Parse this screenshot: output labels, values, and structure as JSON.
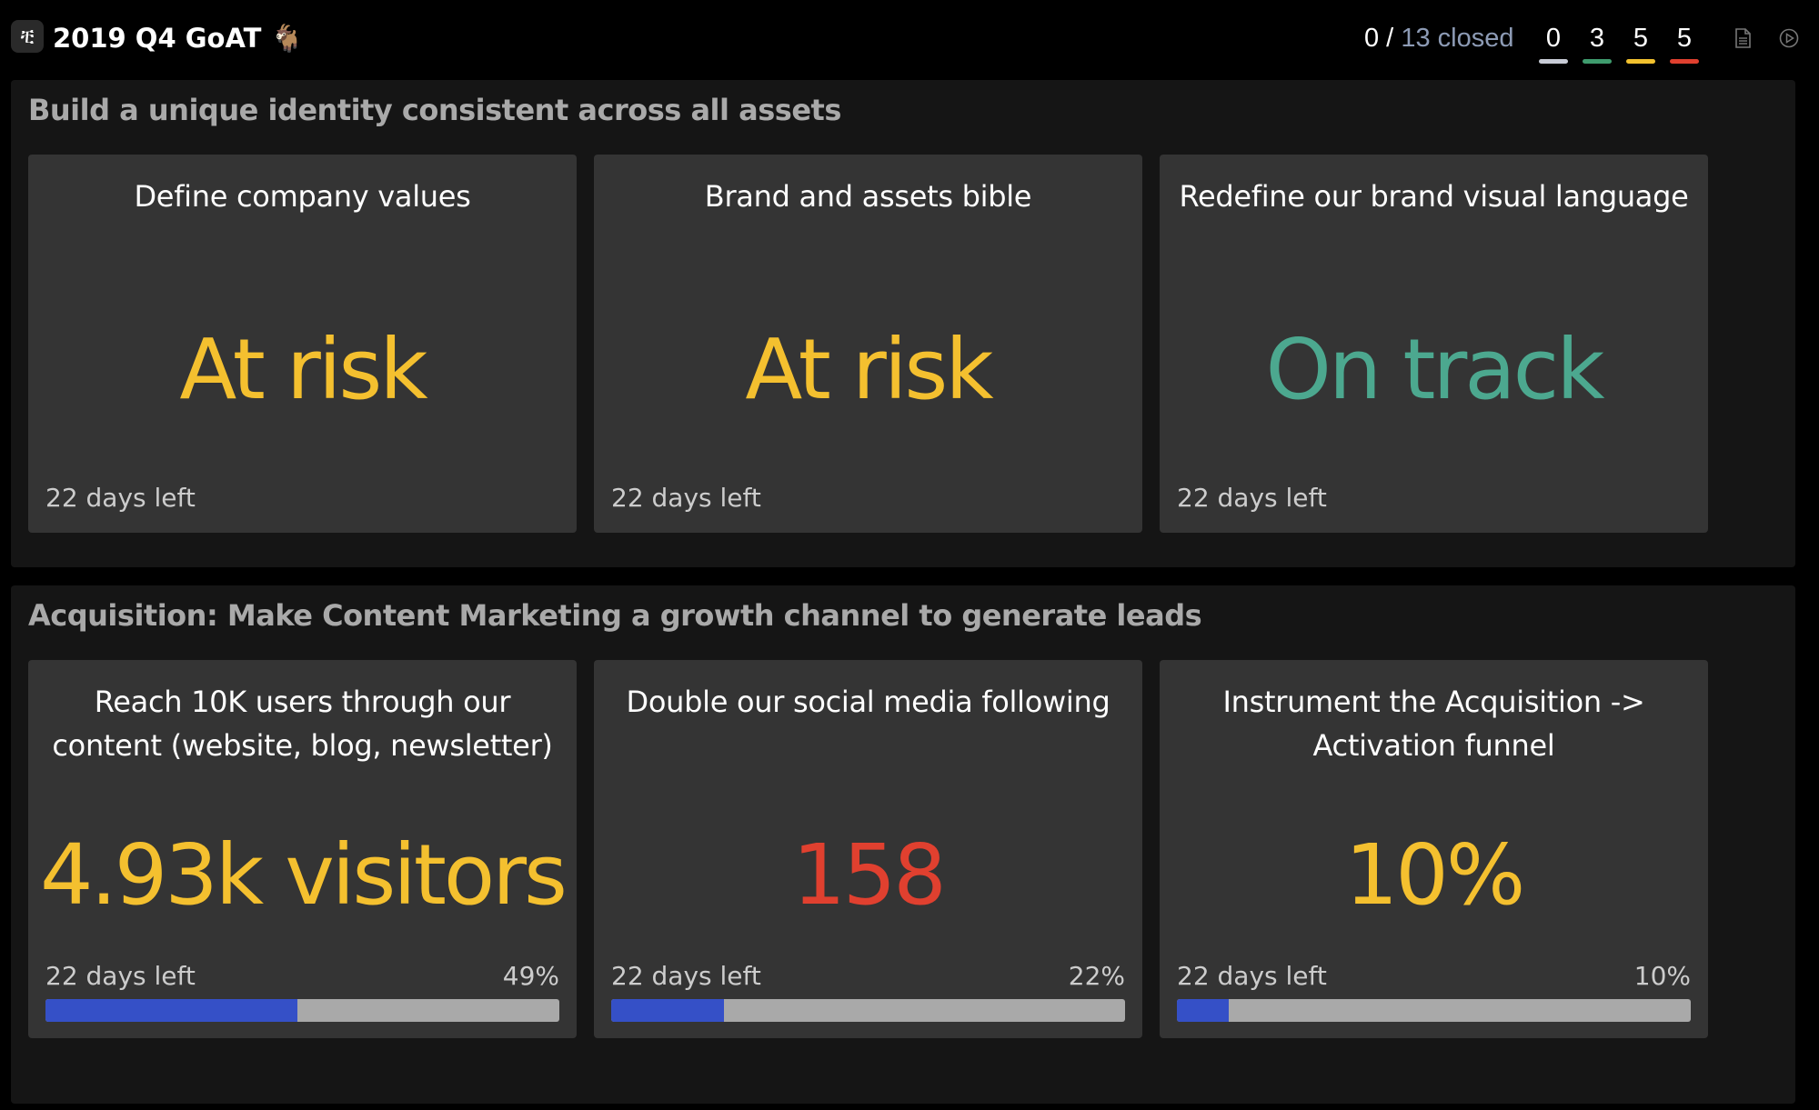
{
  "header": {
    "logo_glyph": "ቺ",
    "title": "2019 Q4 GoAT 🐐",
    "closed_count": "0 /",
    "closed_total_label": "13 closed",
    "counters": [
      {
        "value": "0",
        "color": "#c8ccd6"
      },
      {
        "value": "3",
        "color": "#3f9c6e"
      },
      {
        "value": "5",
        "color": "#f2c12e"
      },
      {
        "value": "5",
        "color": "#e0402f"
      }
    ],
    "icons": [
      "document-icon",
      "play-circle-icon"
    ]
  },
  "colors": {
    "at_risk": "#f4c02f",
    "on_track": "#4ca88f",
    "off_track": "#e0402f",
    "progress_fill": "#3550c7",
    "progress_track": "#a9a9a9"
  },
  "sections": [
    {
      "title": "Build a unique identity consistent across all assets",
      "cards": [
        {
          "title": "Define company values",
          "status": "At risk",
          "status_color": "#f4c02f",
          "days_left": "22 days left"
        },
        {
          "title": "Brand and assets bible",
          "status": "At risk",
          "status_color": "#f4c02f",
          "days_left": "22 days left"
        },
        {
          "title": "Redefine our brand visual language",
          "status": "On track",
          "status_color": "#4ca88f",
          "days_left": "22 days left"
        }
      ]
    },
    {
      "title": "Acquisition: Make Content Marketing a growth channel to generate leads",
      "cards": [
        {
          "title": "Reach 10K users through our content (website, blog, newsletter)",
          "status": "4.93k visitors",
          "status_color": "#f4c02f",
          "days_left": "22 days left",
          "percent_label": "49%",
          "progress": 0.49
        },
        {
          "title": "Double our social media following",
          "status": "158",
          "status_color": "#e0402f",
          "days_left": "22 days left",
          "percent_label": "22%",
          "progress": 0.22
        },
        {
          "title": "Instrument the Acquisition -> Activation funnel",
          "status": "10%",
          "status_color": "#f4c02f",
          "days_left": "22 days left",
          "percent_label": "10%",
          "progress": 0.1
        }
      ]
    }
  ]
}
